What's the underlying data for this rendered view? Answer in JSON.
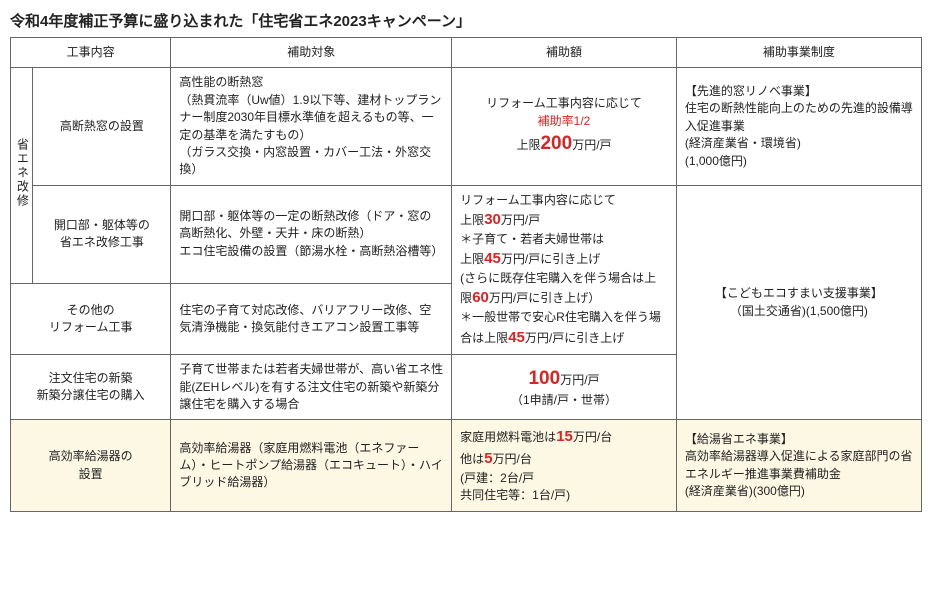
{
  "title": "令和4年度補正予算に盛り込まれた「住宅省エネ2023キャンペーン」",
  "headers": {
    "work": "工事内容",
    "target": "補助対象",
    "amount": "補助額",
    "program": "補助事業制度"
  },
  "vert_label": "省エネ改修",
  "rows": {
    "r1": {
      "work": "高断熱窓の設置",
      "target": "高性能の断熱窓\n（熱貫流率（Uw値）1.9以下等、建材トップランナー制度2030年目標水準値を超えるもの等、一定の基準を満たすもの）\n（ガラス交換・内窓設置・カバー工法・外窓交換）",
      "amount_line1": "リフォーム工事内容に応じて",
      "amount_rate": "補助率1/2",
      "amount_cap_pre": "上限",
      "amount_cap_num": "200",
      "amount_cap_suf": "万円/戸",
      "program": "【先進的窓リノベ事業】\n住宅の断熱性能向上のための先進的設備導入促進事業\n(経済産業省・環境省)\n(1,000億円)"
    },
    "r2": {
      "work": "開口部・躯体等の\n省エネ改修工事",
      "target": "開口部・躯体等の一定の断熱改修（ドア・窓の高断熱化、外壁・天井・床の断熱）\nエコ住宅設備の設置（節湯水栓・高断熱浴槽等）",
      "amount_l1": "リフォーム工事内容に応じて",
      "amount_30pre": "上限",
      "amount_30": "30",
      "amount_30suf": "万円/戸",
      "amount_note1": "＊子育て・若者夫婦世帯は",
      "amount_45pre": "上限",
      "amount_45": "45",
      "amount_45suf": "万円/戸に引き上げ",
      "amount_paren1": "(さらに既存住宅購入を伴う場合は上限",
      "amount_60": "60",
      "amount_60suf": "万円/戸に引き上げ）",
      "amount_note2a": "＊一般世帯で安心R住宅購入を伴う場合は上限",
      "amount_45b": "45",
      "amount_45bsuf": "万円/戸に引き上げ"
    },
    "r3": {
      "work": "その他の\nリフォーム工事",
      "target": "住宅の子育て対応改修、バリアフリー改修、空気清浄機能・換気能付きエアコン設置工事等"
    },
    "r4": {
      "work": "注文住宅の新築\n新築分譲住宅の購入",
      "target": "子育て世帯または若者夫婦世帯が、高い省エネ性能(ZEHレベル)を有する注文住宅の新築や新築分譲住宅を購入する場合",
      "amount_num": "100",
      "amount_suf": "万円/戸",
      "amount_note": "（1申請/戸・世帯）"
    },
    "program_kodomo": "【こどもエコすまい支援事業】\n（国土交通省)(1,500億円)",
    "r5": {
      "work": "高効率給湯器の\n設置",
      "target": "高効率給湯器（家庭用燃料電池（エネファーム）・ヒートポンプ給湯器（エコキュート）・ハイブリッド給湯器）",
      "amount_a_pre": "家庭用燃料電池は",
      "amount_a": "15",
      "amount_a_suf": "万円/台",
      "amount_b_pre": "他は",
      "amount_b": "5",
      "amount_b_suf": "万円/台",
      "amount_note": "(戸建：2台/戸\n共同住宅等：1台/戸)",
      "program": "【給湯省エネ事業】\n高効率給湯器導入促進による家庭部門の省エネルギー推進事業費補助金\n(経済産業省)(300億円)"
    }
  }
}
